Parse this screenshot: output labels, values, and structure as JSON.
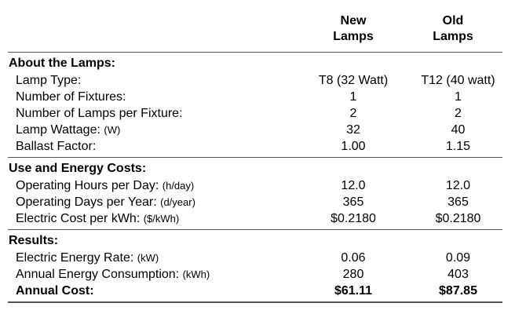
{
  "columns": {
    "new": "New Lamps",
    "new_line1": "New",
    "new_line2": "Lamps",
    "old": "Old Lamps",
    "old_line1": "Old",
    "old_line2": "Lamps"
  },
  "sections": [
    {
      "title": "About the Lamps:",
      "rows": [
        {
          "label": "Lamp Type:",
          "unit": "",
          "new": "T8 (32 Watt)",
          "old": "T12 (40 watt)"
        },
        {
          "label": "Number of Fixtures:",
          "unit": "",
          "new": "1",
          "old": "1"
        },
        {
          "label": "Number of Lamps per Fixture:",
          "unit": "",
          "new": "2",
          "old": "2"
        },
        {
          "label": "Lamp Wattage:",
          "unit": "(W)",
          "new": "32",
          "old": "40"
        },
        {
          "label": "Ballast Factor:",
          "unit": "",
          "new": "1.00",
          "old": "1.15"
        }
      ]
    },
    {
      "title": "Use and Energy Costs:",
      "rows": [
        {
          "label": "Operating Hours per Day:",
          "unit": "(h/day)",
          "new": "12.0",
          "old": "12.0"
        },
        {
          "label": "Operating Days per Year:",
          "unit": "(d/year)",
          "new": "365",
          "old": "365"
        },
        {
          "label": "Electric Cost per kWh:",
          "unit": "($/kWh)",
          "new": "$0.2180",
          "old": "$0.2180"
        }
      ]
    },
    {
      "title": "Results:",
      "rows": [
        {
          "label": "Electric Energy Rate:",
          "unit": "(kW)",
          "new": "0.06",
          "old": "0.09"
        },
        {
          "label": "Annual Energy Consumption:",
          "unit": "(kWh)",
          "new": "280",
          "old": "403"
        },
        {
          "label": "Annual Cost:",
          "unit": "",
          "new": "$61.11",
          "old": "$87.85"
        }
      ]
    }
  ]
}
